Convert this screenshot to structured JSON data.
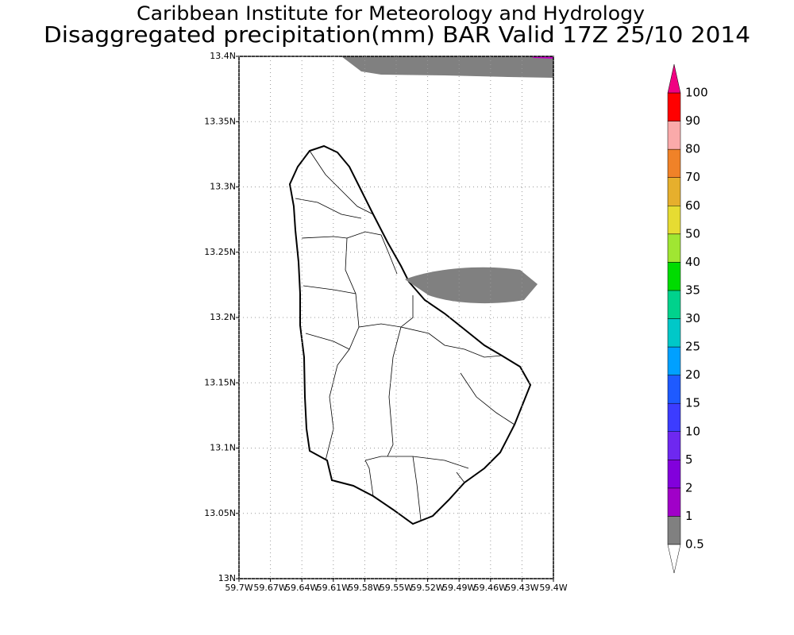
{
  "title": "Caribbean Institute for Meteorology and Hydrology",
  "subtitle": "Disaggregated precipitation(mm) BAR Valid 17Z 25/10 2014",
  "map": {
    "lonlim": [
      -59.7,
      -59.4
    ],
    "latlim": [
      13,
      13.4
    ],
    "lat_ticks": [
      {
        "value": 13,
        "label": "13N"
      },
      {
        "value": 13.05,
        "label": "13.05N"
      },
      {
        "value": 13.1,
        "label": "13.1N"
      },
      {
        "value": 13.15,
        "label": "13.15N"
      },
      {
        "value": 13.2,
        "label": "13.2N"
      },
      {
        "value": 13.25,
        "label": "13.25N"
      },
      {
        "value": 13.3,
        "label": "13.3N"
      },
      {
        "value": 13.35,
        "label": "13.35N"
      },
      {
        "value": 13.4,
        "label": "13.4N"
      }
    ],
    "lon_ticks": [
      {
        "value": -59.7,
        "label": "59.7W"
      },
      {
        "value": -59.67,
        "label": "59.67W"
      },
      {
        "value": -59.64,
        "label": "59.64W"
      },
      {
        "value": -59.61,
        "label": "59.61W"
      },
      {
        "value": -59.58,
        "label": "59.58W"
      },
      {
        "value": -59.55,
        "label": "59.55W"
      },
      {
        "value": -59.52,
        "label": "59.52W"
      },
      {
        "value": -59.49,
        "label": "59.49W"
      },
      {
        "value": -59.46,
        "label": "59.46W"
      },
      {
        "value": -59.43,
        "label": "59.43W"
      },
      {
        "value": -59.4,
        "label": "59.4W"
      }
    ],
    "grid": true
  },
  "colorbar": {
    "levels": [
      0.5,
      1,
      2,
      5,
      10,
      15,
      20,
      25,
      30,
      35,
      40,
      50,
      60,
      70,
      80,
      90,
      100
    ],
    "colors": [
      "#808080",
      "#a000c8",
      "#8200dc",
      "#6e28f0",
      "#3c3cff",
      "#1e5aff",
      "#00a0ff",
      "#00c8c8",
      "#00d28c",
      "#00dc00",
      "#a0e632",
      "#e6dc32",
      "#e6af2d",
      "#f08228",
      "#faaaaa",
      "#ff0000"
    ],
    "top_color": "#f03c3c",
    "over_color": "#f00082",
    "under_color": "#ffffff"
  }
}
